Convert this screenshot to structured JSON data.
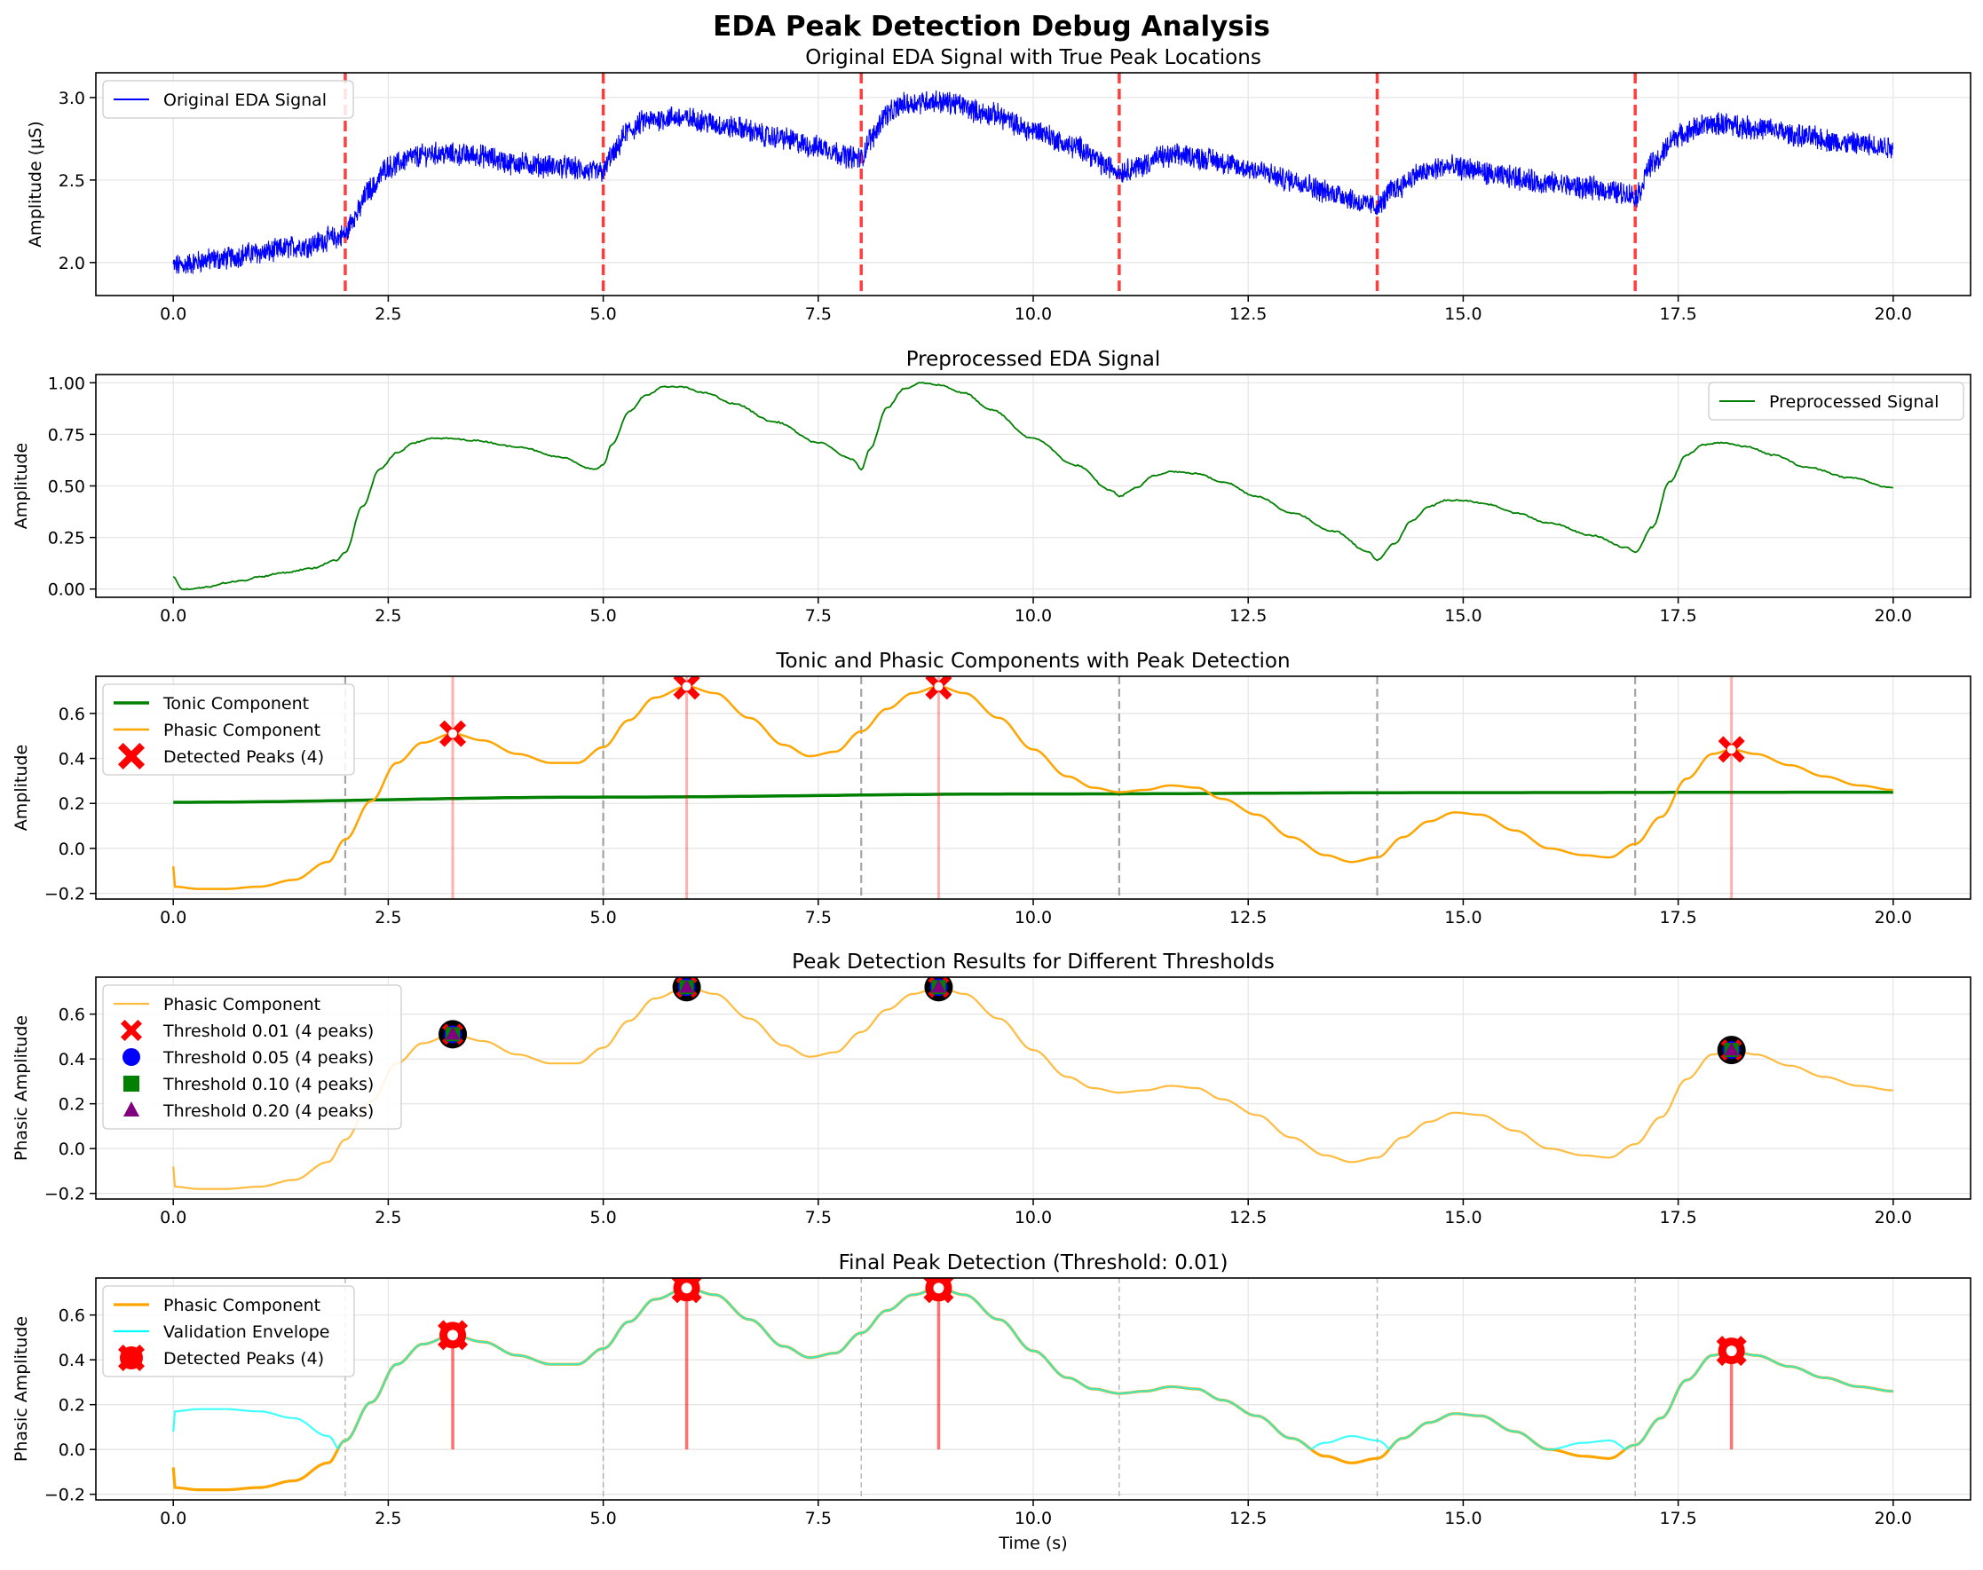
{
  "figure_title": "EDA Peak Detection Debug Analysis",
  "colors": {
    "raw": "#0000ff",
    "preprocessed": "#008000",
    "tonic": "#008000",
    "phasic": "#ffa500",
    "true_peak": "#ff0000",
    "detected": "#ff0000",
    "envelope": "#00ffff",
    "overlap": "#5ad88d",
    "grid": "#e6e6e6",
    "gray_line": "#999999"
  },
  "chart_data": [
    {
      "type": "line",
      "title": "Original EDA Signal with True Peak Locations",
      "xlabel": "",
      "ylabel": "Amplitude (μS)",
      "xlim": [
        -0.9,
        20.9
      ],
      "ylim": [
        1.8,
        3.15
      ],
      "xticks": [
        0.0,
        2.5,
        5.0,
        7.5,
        10.0,
        12.5,
        15.0,
        17.5,
        20.0
      ],
      "xtick_labels": [
        "0.0",
        "2.5",
        "5.0",
        "7.5",
        "10.0",
        "12.5",
        "15.0",
        "17.5",
        "20.0"
      ],
      "yticks": [
        2.0,
        2.5,
        3.0
      ],
      "ytick_labels": [
        "2.0",
        "2.5",
        "3.0"
      ],
      "legend": [
        "Original EDA Signal"
      ],
      "legend_loc": "upper left",
      "true_peak_times": [
        2,
        5,
        8,
        11,
        14,
        17
      ],
      "series": [
        {
          "name": "Original EDA Signal",
          "x": [
            0,
            0.5,
            1.0,
            1.5,
            1.9,
            2.0,
            2.1,
            2.3,
            2.5,
            2.8,
            3.0,
            3.5,
            4.0,
            4.5,
            4.9,
            5.0,
            5.1,
            5.3,
            5.5,
            5.8,
            6.0,
            6.5,
            7.0,
            7.5,
            7.9,
            8.0,
            8.1,
            8.3,
            8.5,
            8.8,
            9.0,
            9.5,
            10.0,
            10.5,
            10.9,
            11.0,
            11.2,
            11.5,
            11.8,
            12.0,
            12.5,
            13.0,
            13.5,
            13.9,
            14.0,
            14.2,
            14.5,
            14.8,
            15.0,
            15.5,
            16.0,
            16.5,
            16.9,
            17.0,
            17.2,
            17.5,
            17.8,
            18.0,
            18.5,
            19.0,
            19.5,
            20.0
          ],
          "y": [
            1.98,
            2.02,
            2.06,
            2.1,
            2.15,
            2.17,
            2.28,
            2.45,
            2.58,
            2.64,
            2.66,
            2.65,
            2.6,
            2.58,
            2.55,
            2.55,
            2.65,
            2.8,
            2.86,
            2.88,
            2.87,
            2.82,
            2.76,
            2.7,
            2.64,
            2.63,
            2.75,
            2.9,
            2.96,
            2.98,
            2.97,
            2.9,
            2.8,
            2.7,
            2.58,
            2.55,
            2.58,
            2.64,
            2.65,
            2.63,
            2.57,
            2.5,
            2.42,
            2.35,
            2.34,
            2.45,
            2.54,
            2.58,
            2.57,
            2.52,
            2.48,
            2.45,
            2.42,
            2.4,
            2.6,
            2.77,
            2.83,
            2.84,
            2.81,
            2.76,
            2.72,
            2.7
          ],
          "noise_amplitude": 0.06
        }
      ]
    },
    {
      "type": "line",
      "title": "Preprocessed EDA Signal",
      "xlabel": "",
      "ylabel": "Amplitude",
      "xlim": [
        -0.9,
        20.9
      ],
      "ylim": [
        -0.04,
        1.04
      ],
      "xticks": [
        0.0,
        2.5,
        5.0,
        7.5,
        10.0,
        12.5,
        15.0,
        17.5,
        20.0
      ],
      "xtick_labels": [
        "0.0",
        "2.5",
        "5.0",
        "7.5",
        "10.0",
        "12.5",
        "15.0",
        "17.5",
        "20.0"
      ],
      "yticks": [
        0.0,
        0.25,
        0.5,
        0.75,
        1.0
      ],
      "ytick_labels": [
        "0.00",
        "0.25",
        "0.50",
        "0.75",
        "1.00"
      ],
      "legend": [
        "Preprocessed Signal"
      ],
      "legend_loc": "upper right",
      "series": [
        {
          "name": "Preprocessed Signal",
          "x": [
            0,
            0.1,
            0.2,
            0.4,
            0.6,
            0.8,
            1.0,
            1.3,
            1.6,
            1.9,
            2.0,
            2.2,
            2.4,
            2.6,
            2.8,
            3.0,
            3.2,
            3.5,
            4.0,
            4.5,
            4.9,
            5.0,
            5.1,
            5.3,
            5.5,
            5.7,
            5.9,
            6.2,
            6.5,
            7.0,
            7.5,
            7.9,
            8.0,
            8.1,
            8.3,
            8.5,
            8.7,
            8.9,
            9.2,
            9.5,
            10.0,
            10.5,
            10.9,
            11.0,
            11.2,
            11.4,
            11.6,
            11.9,
            12.2,
            12.6,
            13.0,
            13.5,
            13.9,
            14.0,
            14.2,
            14.4,
            14.6,
            14.8,
            15.0,
            15.3,
            15.6,
            16.0,
            16.5,
            16.9,
            17.0,
            17.2,
            17.4,
            17.6,
            17.8,
            18.0,
            18.3,
            18.6,
            19.0,
            19.5,
            20.0
          ],
          "y": [
            0.06,
            0.0,
            0.0,
            0.01,
            0.03,
            0.04,
            0.06,
            0.08,
            0.1,
            0.14,
            0.18,
            0.4,
            0.58,
            0.66,
            0.71,
            0.73,
            0.73,
            0.72,
            0.69,
            0.64,
            0.58,
            0.6,
            0.7,
            0.86,
            0.94,
            0.98,
            0.98,
            0.95,
            0.9,
            0.81,
            0.71,
            0.63,
            0.58,
            0.68,
            0.88,
            0.97,
            1.0,
            0.99,
            0.95,
            0.87,
            0.73,
            0.6,
            0.48,
            0.45,
            0.49,
            0.55,
            0.57,
            0.56,
            0.52,
            0.45,
            0.37,
            0.28,
            0.18,
            0.14,
            0.22,
            0.33,
            0.4,
            0.43,
            0.43,
            0.41,
            0.37,
            0.32,
            0.26,
            0.2,
            0.18,
            0.3,
            0.52,
            0.65,
            0.7,
            0.71,
            0.69,
            0.65,
            0.59,
            0.54,
            0.49
          ]
        }
      ]
    },
    {
      "type": "line",
      "title": "Tonic and Phasic Components with Peak Detection",
      "xlabel": "",
      "ylabel": "Amplitude",
      "xlim": [
        -0.9,
        20.9
      ],
      "ylim": [
        -0.225,
        0.765
      ],
      "xticks": [
        0.0,
        2.5,
        5.0,
        7.5,
        10.0,
        12.5,
        15.0,
        17.5,
        20.0
      ],
      "xtick_labels": [
        "0.0",
        "2.5",
        "5.0",
        "7.5",
        "10.0",
        "12.5",
        "15.0",
        "17.5",
        "20.0"
      ],
      "yticks": [
        -0.2,
        0.0,
        0.2,
        0.4,
        0.6
      ],
      "ytick_labels": [
        "−0.2",
        "0.0",
        "0.2",
        "0.4",
        "0.6"
      ],
      "legend": [
        "Tonic Component",
        "Phasic Component",
        "Detected Peaks (4)"
      ],
      "legend_loc": "upper left",
      "true_peak_times": [
        2,
        5,
        8,
        11,
        14,
        17
      ],
      "detected_peaks": {
        "x": [
          3.25,
          5.97,
          8.9,
          18.12
        ],
        "y": [
          0.51,
          0.72,
          0.72,
          0.44
        ]
      },
      "series": [
        {
          "name": "Tonic Component",
          "x": [
            0,
            5,
            10,
            15,
            20
          ],
          "y": [
            0.205,
            0.228,
            0.242,
            0.248,
            0.25
          ]
        },
        {
          "name": "Phasic Component",
          "x": [
            0,
            0.01,
            0.3,
            0.6,
            1.0,
            1.4,
            1.8,
            2.0,
            2.3,
            2.6,
            2.9,
            3.25,
            3.6,
            4.0,
            4.4,
            4.7,
            5.0,
            5.3,
            5.6,
            5.97,
            6.3,
            6.7,
            7.1,
            7.4,
            7.7,
            8.0,
            8.3,
            8.6,
            8.9,
            9.2,
            9.6,
            10.0,
            10.4,
            10.7,
            11.0,
            11.3,
            11.6,
            11.9,
            12.2,
            12.6,
            13.0,
            13.4,
            13.7,
            14.0,
            14.3,
            14.6,
            14.9,
            15.2,
            15.6,
            16.0,
            16.4,
            16.7,
            17.0,
            17.3,
            17.6,
            17.9,
            18.12,
            18.4,
            18.8,
            19.2,
            19.6,
            20.0,
            20.01
          ],
          "y": [
            -0.08,
            -0.17,
            -0.18,
            -0.18,
            -0.17,
            -0.14,
            -0.06,
            0.04,
            0.21,
            0.38,
            0.47,
            0.51,
            0.48,
            0.42,
            0.38,
            0.38,
            0.45,
            0.57,
            0.67,
            0.72,
            0.69,
            0.58,
            0.46,
            0.41,
            0.43,
            0.52,
            0.62,
            0.69,
            0.72,
            0.69,
            0.58,
            0.44,
            0.32,
            0.27,
            0.25,
            0.26,
            0.28,
            0.27,
            0.22,
            0.15,
            0.05,
            -0.03,
            -0.06,
            -0.04,
            0.05,
            0.12,
            0.16,
            0.15,
            0.08,
            0.0,
            -0.03,
            -0.04,
            0.02,
            0.14,
            0.31,
            0.42,
            0.44,
            0.42,
            0.37,
            0.32,
            0.28,
            0.26,
            0.16
          ]
        }
      ]
    },
    {
      "type": "line",
      "title": "Peak Detection Results for Different Thresholds",
      "xlabel": "",
      "ylabel": "Phasic Amplitude",
      "xlim": [
        -0.9,
        20.9
      ],
      "ylim": [
        -0.225,
        0.765
      ],
      "xticks": [
        0.0,
        2.5,
        5.0,
        7.5,
        10.0,
        12.5,
        15.0,
        17.5,
        20.0
      ],
      "xtick_labels": [
        "0.0",
        "2.5",
        "5.0",
        "7.5",
        "10.0",
        "12.5",
        "15.0",
        "17.5",
        "20.0"
      ],
      "yticks": [
        -0.2,
        0.0,
        0.2,
        0.4,
        0.6
      ],
      "ytick_labels": [
        "−0.2",
        "0.0",
        "0.2",
        "0.4",
        "0.6"
      ],
      "legend": [
        "Phasic Component",
        "Threshold 0.01 (4 peaks)",
        "Threshold 0.05 (4 peaks)",
        "Threshold 0.10 (4 peaks)",
        "Threshold 0.20 (4 peaks)"
      ],
      "legend_loc": "upper left",
      "threshold_markers": [
        {
          "label": "Threshold 0.01 (4 peaks)",
          "marker": "X",
          "color": "#ff0000"
        },
        {
          "label": "Threshold 0.05 (4 peaks)",
          "marker": "circle",
          "color": "#0000ff"
        },
        {
          "label": "Threshold 0.10 (4 peaks)",
          "marker": "square",
          "color": "#008000"
        },
        {
          "label": "Threshold 0.20 (4 peaks)",
          "marker": "triangle",
          "color": "#800080"
        }
      ],
      "detected_peaks": {
        "x": [
          3.25,
          5.97,
          8.9,
          18.12
        ],
        "y": [
          0.51,
          0.72,
          0.72,
          0.44
        ]
      },
      "series": [
        {
          "name": "Phasic Component",
          "ref": "phasic"
        }
      ]
    },
    {
      "type": "line",
      "title": "Final Peak Detection (Threshold: 0.01)",
      "xlabel": "Time (s)",
      "ylabel": "Phasic Amplitude",
      "xlim": [
        -0.9,
        20.9
      ],
      "ylim": [
        -0.225,
        0.765
      ],
      "xticks": [
        0.0,
        2.5,
        5.0,
        7.5,
        10.0,
        12.5,
        15.0,
        17.5,
        20.0
      ],
      "xtick_labels": [
        "0.0",
        "2.5",
        "5.0",
        "7.5",
        "10.0",
        "12.5",
        "15.0",
        "17.5",
        "20.0"
      ],
      "yticks": [
        -0.2,
        0.0,
        0.2,
        0.4,
        0.6
      ],
      "ytick_labels": [
        "−0.2",
        "0.0",
        "0.2",
        "0.4",
        "0.6"
      ],
      "legend": [
        "Phasic Component",
        "Validation Envelope",
        "Detected Peaks (4)"
      ],
      "legend_loc": "upper left",
      "true_peak_times": [
        2,
        5,
        8,
        11,
        14,
        17
      ],
      "detected_peaks": {
        "x": [
          3.25,
          5.97,
          8.9,
          18.12
        ],
        "y": [
          0.51,
          0.72,
          0.72,
          0.44
        ]
      },
      "series": [
        {
          "name": "Phasic Component",
          "ref": "phasic"
        },
        {
          "name": "Validation Envelope",
          "transform": "abs(phasic)"
        }
      ]
    }
  ]
}
